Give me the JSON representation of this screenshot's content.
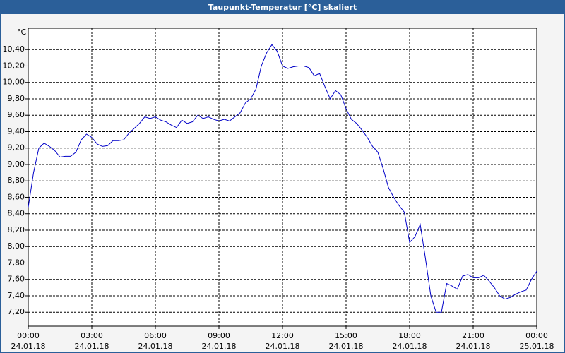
{
  "chart_data": {
    "type": "line",
    "title": "Taupunkt-Temperatur [°C] skaliert",
    "y_unit": "°C",
    "x": [
      0,
      0.25,
      0.5,
      0.75,
      1,
      1.25,
      1.5,
      1.75,
      2,
      2.25,
      2.5,
      2.75,
      3,
      3.25,
      3.5,
      3.75,
      4,
      4.25,
      4.5,
      4.75,
      5,
      5.25,
      5.5,
      5.75,
      6,
      6.25,
      6.5,
      6.75,
      7,
      7.25,
      7.5,
      7.75,
      8,
      8.25,
      8.5,
      8.75,
      9,
      9.25,
      9.5,
      9.75,
      10,
      10.25,
      10.5,
      10.75,
      11,
      11.25,
      11.5,
      11.75,
      12,
      12.25,
      12.5,
      12.75,
      13,
      13.25,
      13.5,
      13.75,
      14,
      14.25,
      14.5,
      14.75,
      15,
      15.25,
      15.5,
      15.75,
      16,
      16.25,
      16.5,
      16.75,
      17,
      17.25,
      17.5,
      17.75,
      18,
      18.25,
      18.5,
      18.75,
      19,
      19.25,
      19.5,
      19.75,
      20,
      20.25,
      20.5,
      20.75,
      21,
      21.25,
      21.5,
      21.75,
      22,
      22.25,
      22.5,
      22.75,
      23,
      23.25,
      23.5,
      23.75,
      24
    ],
    "series": [
      {
        "name": "Taupunkt-Temperatur",
        "color": "#0000c8",
        "values": [
          8.48,
          8.9,
          9.2,
          9.26,
          9.22,
          9.17,
          9.09,
          9.1,
          9.1,
          9.15,
          9.3,
          9.37,
          9.33,
          9.25,
          9.22,
          9.23,
          9.29,
          9.29,
          9.3,
          9.38,
          9.44,
          9.5,
          9.58,
          9.56,
          9.58,
          9.54,
          9.52,
          9.48,
          9.45,
          9.54,
          9.5,
          9.52,
          9.6,
          9.56,
          9.58,
          9.55,
          9.53,
          9.55,
          9.53,
          9.58,
          9.63,
          9.75,
          9.8,
          9.92,
          10.2,
          10.36,
          10.46,
          10.38,
          10.2,
          10.17,
          10.19,
          10.2,
          10.2,
          10.18,
          10.08,
          10.11,
          9.95,
          9.8,
          9.9,
          9.85,
          9.68,
          9.55,
          9.5,
          9.42,
          9.33,
          9.22,
          9.15,
          8.95,
          8.72,
          8.6,
          8.5,
          8.42,
          8.05,
          8.12,
          8.27,
          7.85,
          7.4,
          7.2,
          7.2,
          7.55,
          7.52,
          7.48,
          7.64,
          7.66,
          7.62,
          7.62,
          7.65,
          7.58,
          7.5,
          7.4,
          7.36,
          7.38,
          7.42,
          7.45,
          7.47,
          7.6,
          7.7
        ]
      }
    ],
    "xlim": [
      0,
      24
    ],
    "xticks": [
      {
        "value": 0,
        "label": "00:00"
      },
      {
        "value": 3,
        "label": "03:00"
      },
      {
        "value": 6,
        "label": "06:00"
      },
      {
        "value": 9,
        "label": "09:00"
      },
      {
        "value": 12,
        "label": "12:00"
      },
      {
        "value": 15,
        "label": "15:00"
      },
      {
        "value": 18,
        "label": "18:00"
      },
      {
        "value": 21,
        "label": "21:00"
      },
      {
        "value": 24,
        "label": "00:00"
      }
    ],
    "xtick_dates": [
      "24.01.18",
      "24.01.18",
      "24.01.18",
      "24.01.18",
      "24.01.18",
      "24.01.18",
      "24.01.18",
      "24.01.18",
      "25.01.18"
    ],
    "ylim": [
      7.03,
      10.66
    ],
    "yticks": [
      {
        "value": 7.2,
        "label": "7,20"
      },
      {
        "value": 7.4,
        "label": "7,40"
      },
      {
        "value": 7.6,
        "label": "7,60"
      },
      {
        "value": 7.8,
        "label": "7,80"
      },
      {
        "value": 8.0,
        "label": "8,00"
      },
      {
        "value": 8.2,
        "label": "8,20"
      },
      {
        "value": 8.4,
        "label": "8,40"
      },
      {
        "value": 8.6,
        "label": "8,60"
      },
      {
        "value": 8.8,
        "label": "8,80"
      },
      {
        "value": 9.0,
        "label": "9,00"
      },
      {
        "value": 9.2,
        "label": "9,20"
      },
      {
        "value": 9.4,
        "label": "9,40"
      },
      {
        "value": 9.6,
        "label": "9,60"
      },
      {
        "value": 9.8,
        "label": "9,80"
      },
      {
        "value": 10.0,
        "label": "10,00"
      },
      {
        "value": 10.2,
        "label": "10,20"
      },
      {
        "value": 10.4,
        "label": "10,40"
      }
    ],
    "grid": true
  }
}
